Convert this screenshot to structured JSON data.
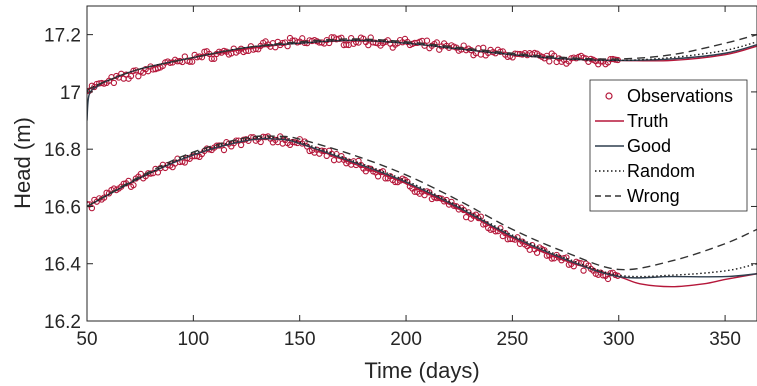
{
  "chart_data": {
    "type": "line",
    "title": "",
    "xlabel": "Time (days)",
    "ylabel": "Head (m)",
    "xlim": [
      50,
      365
    ],
    "ylim": [
      16.2,
      17.3
    ],
    "xticks": [
      50,
      100,
      150,
      200,
      250,
      300,
      350
    ],
    "yticks": [
      16.2,
      16.4,
      16.6,
      16.8,
      17,
      17.2
    ],
    "ytick_labels": [
      "16.2",
      "16.4",
      "16.6",
      "16.8",
      "17",
      "17.2"
    ],
    "grid": false,
    "legend_position": "right",
    "legend": [
      {
        "label": "Observations",
        "style": "marker-circle",
        "color": "#b5173a"
      },
      {
        "label": "Truth",
        "style": "solid",
        "color": "#b5173a"
      },
      {
        "label": "Good",
        "style": "solid",
        "color": "#2f3e4e"
      },
      {
        "label": "Random",
        "style": "dotted",
        "color": "#1a1a1a"
      },
      {
        "label": "Wrong",
        "style": "dashed",
        "color": "#333333"
      }
    ],
    "observations": [
      {
        "name": "upper well",
        "x": [
          50,
          75,
          100,
          125,
          150,
          175,
          200,
          225,
          250,
          275,
          300
        ],
        "y": [
          17.01,
          17.07,
          17.12,
          17.15,
          17.175,
          17.18,
          17.17,
          17.15,
          17.13,
          17.115,
          17.11
        ]
      },
      {
        "name": "lower well",
        "x": [
          50,
          75,
          100,
          125,
          140,
          150,
          175,
          200,
          225,
          250,
          275,
          300
        ],
        "y": [
          16.6,
          16.7,
          16.78,
          16.83,
          16.835,
          16.82,
          16.75,
          16.68,
          16.59,
          16.49,
          16.41,
          16.35
        ]
      }
    ],
    "series": [
      {
        "name": "Truth",
        "style": "solid",
        "color": "#b5173a",
        "x": [
          50,
          51,
          55,
          60,
          75,
          100,
          125,
          150,
          175,
          200,
          225,
          250,
          275,
          300,
          325,
          350,
          365
        ],
        "y": [
          17.0,
          17.01,
          17.02,
          17.04,
          17.08,
          17.12,
          17.15,
          17.17,
          17.178,
          17.17,
          17.15,
          17.13,
          17.115,
          17.11,
          17.11,
          17.13,
          17.16
        ]
      },
      {
        "name": "Good",
        "style": "solid",
        "color": "#2f3e4e",
        "x": [
          50,
          51,
          55,
          60,
          75,
          100,
          125,
          150,
          175,
          200,
          225,
          250,
          275,
          300,
          325,
          350,
          365
        ],
        "y": [
          16.9,
          16.99,
          17.02,
          17.04,
          17.08,
          17.12,
          17.155,
          17.17,
          17.18,
          17.17,
          17.15,
          17.13,
          17.115,
          17.11,
          17.115,
          17.135,
          17.165
        ]
      },
      {
        "name": "Random",
        "style": "dotted",
        "color": "#1a1a1a",
        "x": [
          50,
          51,
          55,
          60,
          75,
          100,
          125,
          150,
          175,
          200,
          225,
          250,
          275,
          300,
          325,
          350,
          365
        ],
        "y": [
          17.0,
          17.01,
          17.025,
          17.04,
          17.08,
          17.12,
          17.155,
          17.17,
          17.18,
          17.17,
          17.15,
          17.13,
          17.115,
          17.11,
          17.12,
          17.145,
          17.175
        ]
      },
      {
        "name": "Wrong",
        "style": "dashed",
        "color": "#333333",
        "x": [
          50,
          51,
          55,
          60,
          75,
          100,
          125,
          150,
          175,
          200,
          225,
          250,
          275,
          300,
          325,
          350,
          365
        ],
        "y": [
          17.0,
          17.01,
          17.025,
          17.04,
          17.08,
          17.12,
          17.155,
          17.175,
          17.185,
          17.175,
          17.155,
          17.135,
          17.12,
          17.115,
          17.13,
          17.17,
          17.2
        ]
      },
      {
        "name": "Truth",
        "style": "solid",
        "color": "#b5173a",
        "x": [
          50,
          75,
          100,
          125,
          140,
          150,
          175,
          200,
          225,
          250,
          275,
          300,
          310,
          325,
          340,
          350,
          365
        ],
        "y": [
          16.6,
          16.7,
          16.78,
          16.83,
          16.835,
          16.82,
          16.75,
          16.68,
          16.59,
          16.49,
          16.41,
          16.355,
          16.33,
          16.32,
          16.33,
          16.345,
          16.365
        ]
      },
      {
        "name": "Good",
        "style": "solid",
        "color": "#2f3e4e",
        "x": [
          50,
          75,
          100,
          125,
          140,
          150,
          175,
          200,
          225,
          250,
          275,
          300,
          325,
          350,
          365
        ],
        "y": [
          16.6,
          16.7,
          16.78,
          16.83,
          16.835,
          16.82,
          16.755,
          16.685,
          16.595,
          16.495,
          16.415,
          16.355,
          16.355,
          16.355,
          16.365
        ]
      },
      {
        "name": "Random",
        "style": "dotted",
        "color": "#1a1a1a",
        "x": [
          50,
          75,
          100,
          125,
          140,
          150,
          175,
          200,
          225,
          250,
          275,
          300,
          325,
          350,
          365
        ],
        "y": [
          16.6,
          16.7,
          16.785,
          16.835,
          16.84,
          16.825,
          16.76,
          16.69,
          16.6,
          16.5,
          16.42,
          16.36,
          16.36,
          16.375,
          16.4
        ]
      },
      {
        "name": "Wrong",
        "style": "dashed",
        "color": "#333333",
        "x": [
          50,
          75,
          100,
          125,
          140,
          150,
          175,
          200,
          225,
          250,
          275,
          300,
          325,
          350,
          365
        ],
        "y": [
          16.6,
          16.705,
          16.79,
          16.84,
          16.845,
          16.835,
          16.78,
          16.71,
          16.62,
          16.52,
          16.44,
          16.38,
          16.41,
          16.47,
          16.52
        ]
      }
    ]
  }
}
